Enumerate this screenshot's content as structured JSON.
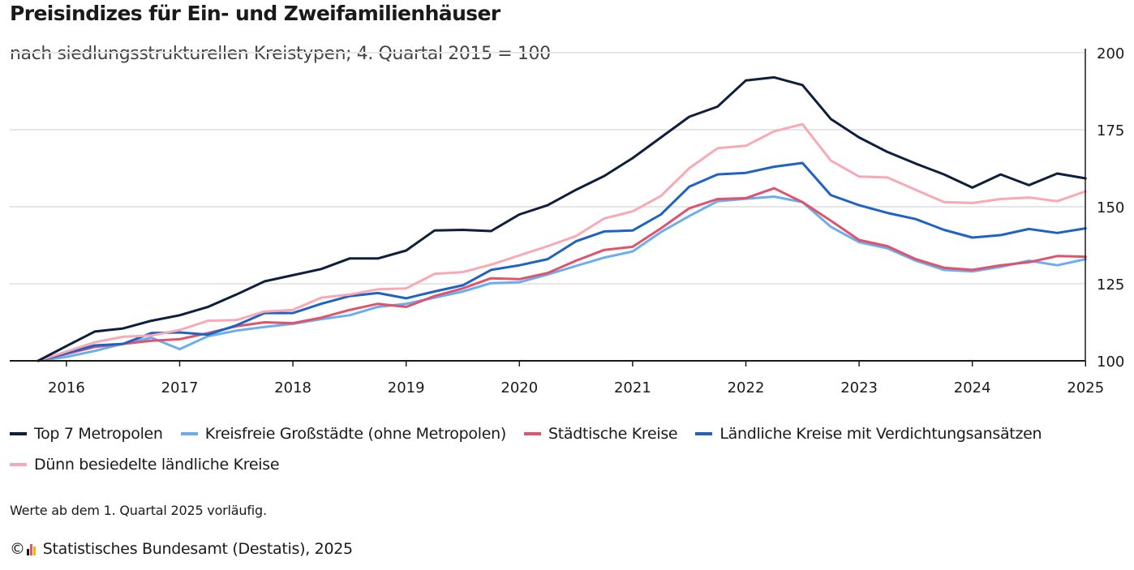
{
  "chart_data": {
    "type": "line",
    "title": "Preisindizes für Ein- und Zweifamilienhäuser",
    "subtitle": "nach siedlungsstrukturellen Kreistypen; 4. Quartal 2015 = 100",
    "x_tick_labels": [
      "2016",
      "2017",
      "2018",
      "2019",
      "2020",
      "2021",
      "2022",
      "2023",
      "2024",
      "2025"
    ],
    "y_ticks": [
      100,
      125,
      150,
      175,
      200
    ],
    "ylim": [
      100,
      200
    ],
    "grid": true,
    "y_axis_position": "right",
    "legend_position": "bottom",
    "x_quarters": [
      "2015-Q4",
      "2016-Q1",
      "2016-Q2",
      "2016-Q3",
      "2016-Q4",
      "2017-Q1",
      "2017-Q2",
      "2017-Q3",
      "2017-Q4",
      "2018-Q1",
      "2018-Q2",
      "2018-Q3",
      "2018-Q4",
      "2019-Q1",
      "2019-Q2",
      "2019-Q3",
      "2019-Q4",
      "2020-Q1",
      "2020-Q2",
      "2020-Q3",
      "2020-Q4",
      "2021-Q1",
      "2021-Q2",
      "2021-Q3",
      "2021-Q4",
      "2022-Q1",
      "2022-Q2",
      "2022-Q3",
      "2022-Q4",
      "2023-Q1",
      "2023-Q2",
      "2023-Q3",
      "2023-Q4",
      "2024-Q1",
      "2024-Q2",
      "2024-Q3",
      "2024-Q4",
      "2025-Q1"
    ],
    "series": [
      {
        "name": "Top 7 Metropolen",
        "color": "#0d1f3c",
        "values": [
          100,
          104.8,
          109.5,
          110.5,
          113,
          114.8,
          117.5,
          121.5,
          125.8,
          127.8,
          129.8,
          133.2,
          133.2,
          135.8,
          142.3,
          142.5,
          142.1,
          147.5,
          150.5,
          155.5,
          160,
          165.8,
          172.5,
          179.2,
          182.5,
          191,
          192,
          189.5,
          178.5,
          172.5,
          167.8,
          164,
          160.5,
          156.2,
          160.5,
          157,
          160.8,
          159.2
        ]
      },
      {
        "name": "Kreisfreie Großstädte (ohne Metropolen)",
        "color": "#6aaef2",
        "values": [
          100,
          101.3,
          103.2,
          105.5,
          107.5,
          103.8,
          108,
          109.8,
          111,
          112,
          113.5,
          114.8,
          117.5,
          118.5,
          120.5,
          122.5,
          125.2,
          125.5,
          128,
          130.8,
          133.5,
          135.5,
          141.8,
          147,
          151.8,
          152.6,
          153.3,
          151.5,
          143.5,
          138.5,
          136.5,
          132.5,
          129.5,
          129,
          130.5,
          132.5,
          131,
          133
        ]
      },
      {
        "name": "Städtische Kreise",
        "color": "#e0536b",
        "values": [
          100,
          102.2,
          104.5,
          105.5,
          106.5,
          107,
          109,
          111.2,
          112.5,
          112.2,
          114,
          116.5,
          118.5,
          117.5,
          121,
          123.5,
          126.8,
          126.5,
          128.5,
          132.5,
          136,
          137,
          143,
          149.5,
          152.5,
          152.8,
          156,
          151.5,
          145.5,
          139.2,
          137.2,
          133,
          130.2,
          129.5,
          131,
          132,
          134,
          133.8
        ]
      },
      {
        "name": "Ländliche Kreise mit Verdichtungsansätzen",
        "color": "#1f63c2",
        "values": [
          100,
          102.5,
          105,
          105.5,
          109,
          109.2,
          108.5,
          111.5,
          115.5,
          115.5,
          118.5,
          121,
          122,
          120.3,
          122.5,
          124.5,
          129.5,
          131,
          133,
          138.8,
          142,
          142.3,
          147.5,
          156.5,
          160.5,
          161,
          163,
          164.2,
          153.8,
          150.5,
          148,
          146,
          142.5,
          140,
          140.8,
          142.8,
          141.5,
          143
        ]
      },
      {
        "name": "Dünn besiedelte ländliche Kreise",
        "color": "#f8a9b4",
        "values": [
          100,
          103,
          106,
          107.8,
          108.2,
          110,
          113,
          113.2,
          116,
          116.5,
          120.5,
          121.5,
          123.2,
          123.5,
          128.2,
          128.8,
          131.2,
          134.2,
          137.2,
          140.5,
          146.2,
          148.5,
          153.5,
          162.5,
          169,
          169.8,
          174.5,
          176.8,
          165,
          159.8,
          159.5,
          155.5,
          151.5,
          151.2,
          152.5,
          153,
          151.8,
          155
        ]
      }
    ]
  },
  "note": "Werte ab dem 1. Quartal 2025 vorläufig.",
  "source": {
    "copyright_symbol": "©",
    "text": "Statistisches Bundesamt (Destatis), 2025",
    "logo_colors": [
      "#1a1a1a",
      "#e0536b",
      "#f2b705"
    ]
  }
}
